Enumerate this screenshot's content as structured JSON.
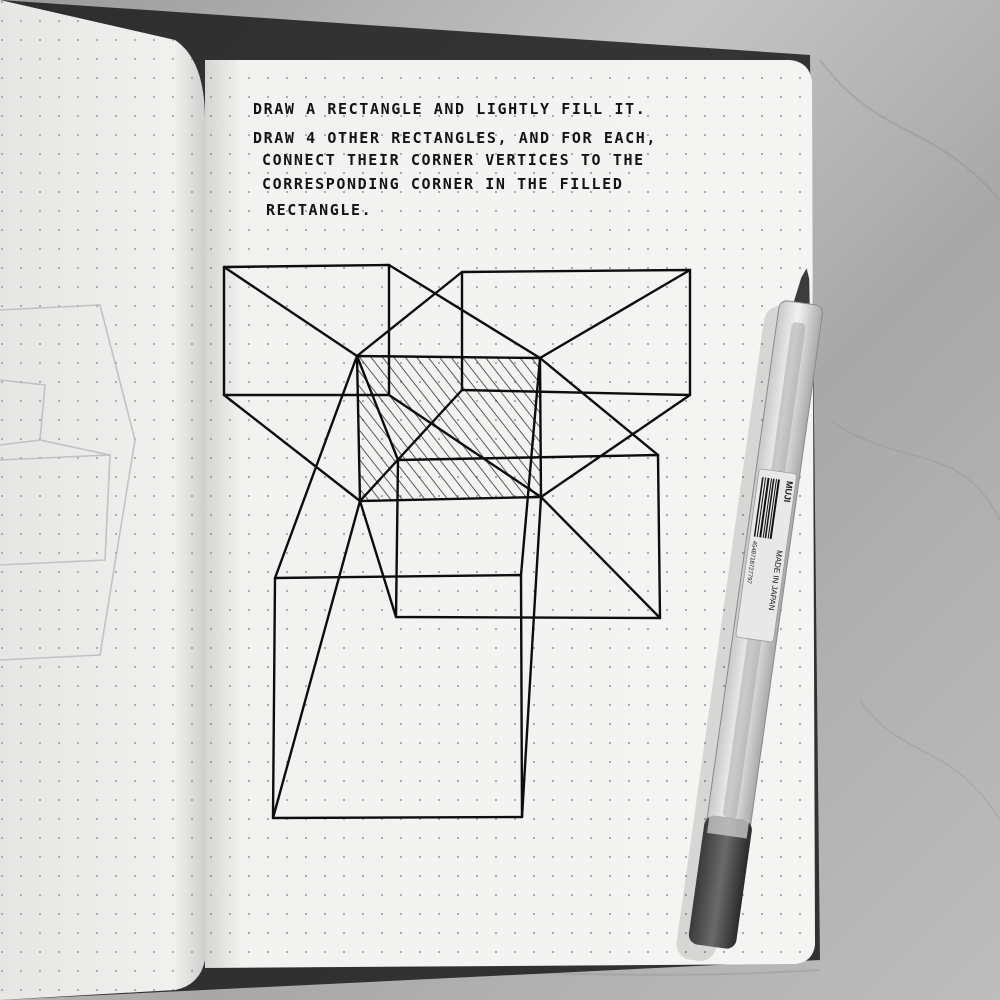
{
  "page_lines": [
    "DRAW A RECTANGLE AND LIGHTLY FILL IT.",
    "DRAW 4 OTHER RECTANGLES, AND FOR EACH,",
    "CONNECT THEIR CORNER VERTICES TO THE",
    "CORRESPONDING CORNER IN THE FILLED",
    "RECTANGLE."
  ],
  "pen_label": {
    "brand": "MUJI",
    "origin": "MADE IN JAPAN",
    "barcode_number": "4548718727797"
  },
  "icons": {
    "pen": "gel-pen-icon",
    "barcode": "barcode-icon"
  },
  "colors": {
    "paper": "#f1f1ef",
    "ink": "#0d0d0d",
    "marble": "#b4b4b4"
  }
}
